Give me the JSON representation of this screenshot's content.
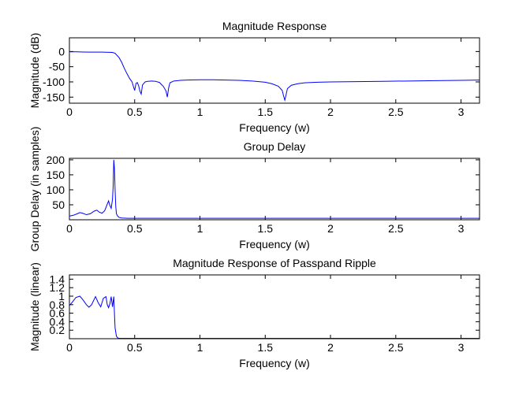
{
  "figure": {
    "background": "#ffffff",
    "line_color": "#0000ff",
    "axes_color": "#000000"
  },
  "chart_data": [
    {
      "type": "line",
      "title": "Magnitude Response",
      "xlabel": "Frequency (w)",
      "ylabel": "Magnitude (dB)",
      "xlim": [
        0,
        3.1416
      ],
      "ylim": [
        -170,
        45
      ],
      "xticks": [
        0,
        0.5,
        1,
        1.5,
        2,
        2.5,
        3
      ],
      "xtick_labels": [
        "0",
        "0.5",
        "1",
        "1.5",
        "2",
        "2.5",
        "3"
      ],
      "yticks": [
        -150,
        -100,
        -50,
        0
      ],
      "ytick_labels": [
        "-150",
        "-100",
        "-50",
        "0"
      ],
      "series": [
        {
          "x": [
            0,
            0.05,
            0.1,
            0.15,
            0.2,
            0.25,
            0.3,
            0.33,
            0.35,
            0.38,
            0.4,
            0.42,
            0.44,
            0.46,
            0.48,
            0.49,
            0.5,
            0.51,
            0.52,
            0.53,
            0.54,
            0.55,
            0.56,
            0.58,
            0.6,
            0.63,
            0.66,
            0.69,
            0.72,
            0.74,
            0.75,
            0.76,
            0.77,
            0.8,
            0.85,
            0.9,
            1.0,
            1.1,
            1.2,
            1.3,
            1.4,
            1.5,
            1.55,
            1.6,
            1.63,
            1.64,
            1.65,
            1.66,
            1.67,
            1.7,
            1.75,
            1.8,
            1.9,
            2.0,
            2.2,
            2.4,
            2.6,
            2.8,
            3.0,
            3.1416
          ],
          "y": [
            -1,
            -1,
            -1.5,
            -2,
            -2,
            -2,
            -2.5,
            -3,
            -6,
            -20,
            -35,
            -55,
            -72,
            -88,
            -100,
            -115,
            -128,
            -105,
            -102,
            -112,
            -130,
            -140,
            -110,
            -100,
            -98,
            -97,
            -98,
            -102,
            -115,
            -130,
            -150,
            -120,
            -103,
            -97,
            -95,
            -94,
            -93,
            -93,
            -94,
            -95,
            -97,
            -101,
            -106,
            -114,
            -128,
            -145,
            -160,
            -142,
            -122,
            -111,
            -106,
            -103,
            -101,
            -100,
            -99,
            -98,
            -97,
            -96,
            -95,
            -94
          ]
        }
      ]
    },
    {
      "type": "line",
      "title": "Group Delay",
      "xlabel": "Frequency (w)",
      "ylabel": "Group Delay (in samples)",
      "xlim": [
        0,
        3.1416
      ],
      "ylim": [
        0,
        205
      ],
      "xticks": [
        0,
        0.5,
        1,
        1.5,
        2,
        2.5,
        3
      ],
      "xtick_labels": [
        "0",
        "0.5",
        "1",
        "1.5",
        "2",
        "2.5",
        "3"
      ],
      "yticks": [
        50,
        100,
        150,
        200
      ],
      "ytick_labels": [
        "50",
        "100",
        "150",
        "200"
      ],
      "series": [
        {
          "x": [
            0,
            0.03,
            0.06,
            0.08,
            0.1,
            0.13,
            0.16,
            0.19,
            0.21,
            0.23,
            0.25,
            0.27,
            0.29,
            0.3,
            0.31,
            0.32,
            0.33,
            0.335,
            0.34,
            0.345,
            0.35,
            0.355,
            0.36,
            0.37,
            0.38,
            0.4,
            0.45,
            0.5,
            1.0,
            2.0,
            3.0,
            3.1416
          ],
          "y": [
            12,
            15,
            20,
            24,
            22,
            17,
            20,
            29,
            32,
            25,
            22,
            30,
            52,
            63,
            48,
            38,
            68,
            110,
            200,
            170,
            100,
            45,
            20,
            12,
            8,
            6,
            5,
            5,
            5,
            5,
            5,
            5
          ]
        }
      ]
    },
    {
      "type": "line",
      "title": "Magnitude Response of Passpand Ripple",
      "xlabel": "Frequency (w)",
      "ylabel": "Magnitude (linear)",
      "xlim": [
        0,
        3.1416
      ],
      "ylim": [
        0,
        1.5
      ],
      "xticks": [
        0,
        0.5,
        1,
        1.5,
        2,
        2.5,
        3
      ],
      "xtick_labels": [
        "0",
        "0.5",
        "1",
        "1.5",
        "2",
        "2.5",
        "3"
      ],
      "yticks": [
        0.2,
        0.4,
        0.6,
        0.8,
        1,
        1.2,
        1.4
      ],
      "ytick_labels": [
        "0.2",
        "0.4",
        "0.6",
        "0.8",
        "1",
        "1.2",
        "1.4"
      ],
      "series": [
        {
          "x": [
            0,
            0.02,
            0.05,
            0.08,
            0.1,
            0.13,
            0.15,
            0.17,
            0.2,
            0.22,
            0.24,
            0.26,
            0.28,
            0.29,
            0.3,
            0.31,
            0.32,
            0.33,
            0.34,
            0.345,
            0.35,
            0.36,
            0.37,
            0.38,
            0.4,
            0.5,
            1.0,
            2.0,
            3.0,
            3.1416
          ],
          "y": [
            0.78,
            0.85,
            0.97,
            1.0,
            0.93,
            0.8,
            0.74,
            0.8,
            0.99,
            0.85,
            0.75,
            0.95,
            0.99,
            0.8,
            0.73,
            0.82,
            0.99,
            0.75,
            0.99,
            0.6,
            0.25,
            0.06,
            0.02,
            0.01,
            0.01,
            0.01,
            0.01,
            0.01,
            0.01,
            0.01
          ]
        }
      ]
    }
  ]
}
